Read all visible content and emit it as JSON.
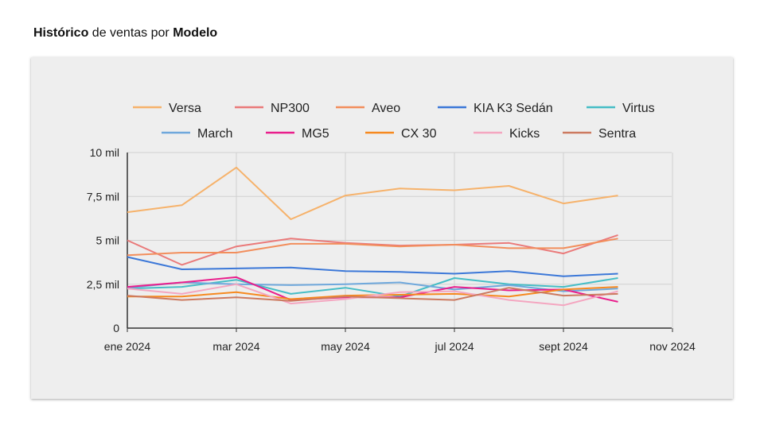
{
  "title": {
    "bold1": "Histórico",
    "mid": " de ventas por ",
    "bold2": "Modelo"
  },
  "chart_data": {
    "type": "line",
    "title": "Histórico de ventas por Modelo",
    "x": [
      "2024-01",
      "2024-02",
      "2024-03",
      "2024-04",
      "2024-05",
      "2024-06",
      "2024-07",
      "2024-08",
      "2024-09",
      "2024-10"
    ],
    "xticks": [
      "ene 2024",
      "mar 2024",
      "may 2024",
      "jul 2024",
      "sept 2024",
      "nov 2024"
    ],
    "yticks": [
      "0",
      "2,5 mil",
      "5 mil",
      "7,5 mil",
      "10 mil"
    ],
    "ylim": [
      0,
      10000
    ],
    "legend_position": "top",
    "grid": true,
    "series": [
      {
        "name": "Versa",
        "color": "#f6b26b",
        "values": [
          6600,
          7000,
          9150,
          6200,
          7550,
          7950,
          7850,
          8100,
          7100,
          7550
        ]
      },
      {
        "name": "NP300",
        "color": "#ea7a7a",
        "values": [
          5000,
          3600,
          4650,
          5100,
          4850,
          4700,
          4750,
          4850,
          4250,
          5300
        ]
      },
      {
        "name": "Aveo",
        "color": "#f28e5c",
        "values": [
          4150,
          4300,
          4300,
          4800,
          4800,
          4650,
          4750,
          4550,
          4550,
          5100
        ]
      },
      {
        "name": "KIA K3 Sedán",
        "color": "#3c78d8",
        "values": [
          4050,
          3350,
          3400,
          3450,
          3250,
          3200,
          3100,
          3250,
          2950,
          3100
        ]
      },
      {
        "name": "Virtus",
        "color": "#46bdc6",
        "values": [
          2250,
          2350,
          2750,
          1950,
          2300,
          1800,
          2850,
          2500,
          2350,
          2850
        ]
      },
      {
        "name": "March",
        "color": "#6fa8dc",
        "values": [
          2300,
          2600,
          2500,
          2450,
          2500,
          2600,
          2200,
          2450,
          2100,
          2250
        ]
      },
      {
        "name": "MG5",
        "color": "#e91e8c",
        "values": [
          2350,
          2600,
          2900,
          1600,
          1750,
          1750,
          2350,
          2150,
          2200,
          1500
        ]
      },
      {
        "name": "CX 30",
        "color": "#f6891f",
        "values": [
          1800,
          1800,
          2050,
          1650,
          1850,
          1900,
          1950,
          1800,
          2200,
          2350
        ]
      },
      {
        "name": "Kicks",
        "color": "#f4a6c0",
        "values": [
          2250,
          1950,
          2500,
          1400,
          1650,
          2050,
          2100,
          1600,
          1300,
          2100
        ]
      },
      {
        "name": "Sentra",
        "color": "#cc7a60",
        "values": [
          1850,
          1600,
          1750,
          1550,
          1800,
          1700,
          1600,
          2300,
          1850,
          1950
        ]
      }
    ]
  }
}
